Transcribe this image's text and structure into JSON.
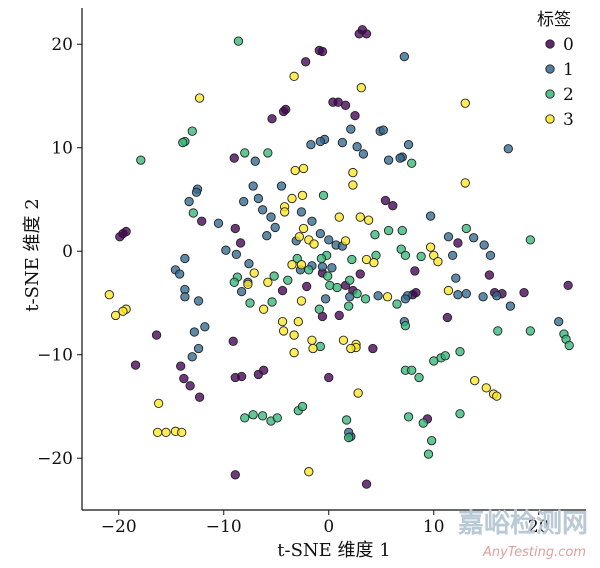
{
  "chart_data": {
    "type": "scatter",
    "title": "",
    "xlabel": "t-SNE 维度 1",
    "ylabel": "t-SNE 维度 2",
    "xlim": [
      -23.5,
      24.5
    ],
    "ylim": [
      -25,
      23.5
    ],
    "xticks": [
      -20,
      -10,
      0,
      10,
      20
    ],
    "yticks": [
      -20,
      -10,
      0,
      10,
      20
    ],
    "xtick_labels": [
      "−20",
      "−10",
      "0",
      "10",
      "20"
    ],
    "ytick_labels": [
      "−20",
      "−10",
      "0",
      "10",
      "20"
    ],
    "grid": false,
    "legend": {
      "title": "标签",
      "placement": "top-right"
    },
    "series": [
      {
        "name": "0",
        "color": "#440154",
        "points": [
          [
            2.9,
            21.0
          ],
          [
            3.2,
            21.4
          ],
          [
            3.6,
            21.0
          ],
          [
            -0.9,
            19.4
          ],
          [
            -0.6,
            19.3
          ],
          [
            -2.2,
            18.3
          ],
          [
            -4.1,
            13.7
          ],
          [
            -4.3,
            13.5
          ],
          [
            -5.4,
            12.8
          ],
          [
            0.4,
            14.4
          ],
          [
            0.9,
            14.4
          ],
          [
            1.6,
            14.1
          ],
          [
            -9.0,
            9.0
          ],
          [
            -12.1,
            2.9
          ],
          [
            -8.4,
            0.8
          ],
          [
            -8.9,
            2.2
          ],
          [
            -19.6,
            1.7
          ],
          [
            -19.3,
            1.9
          ],
          [
            -19.9,
            1.4
          ],
          [
            -16.4,
            -8.1
          ],
          [
            -18.4,
            -11.0
          ],
          [
            -14.1,
            -11.1
          ],
          [
            -13.8,
            -12.3
          ],
          [
            -13.2,
            -13.0
          ],
          [
            -12.3,
            -14.1
          ],
          [
            -9.1,
            -8.7
          ],
          [
            -8.9,
            -12.2
          ],
          [
            -8.3,
            -12.1
          ],
          [
            -6.7,
            -11.9
          ],
          [
            -6.2,
            -11.5
          ],
          [
            -8.9,
            -21.6
          ],
          [
            -4.4,
            -3.8
          ],
          [
            -2.1,
            -3.4
          ],
          [
            -0.6,
            -6.3
          ],
          [
            -0.6,
            -2.1
          ],
          [
            3.0,
            -2.2
          ],
          [
            4.2,
            -9.4
          ],
          [
            2.3,
            -3.8
          ],
          [
            1.6,
            -3.3
          ],
          [
            1.0,
            -6.2
          ],
          [
            0.0,
            -12.2
          ],
          [
            3.6,
            -22.5
          ],
          [
            5.4,
            4.9
          ],
          [
            6.1,
            4.4
          ],
          [
            8.0,
            -4.2
          ],
          [
            8.3,
            -4.0
          ],
          [
            8.2,
            -1.9
          ],
          [
            11.3,
            -6.4
          ],
          [
            12.3,
            0.8
          ],
          [
            15.3,
            -2.3
          ],
          [
            16.5,
            -4.1
          ],
          [
            15.8,
            -4.0
          ],
          [
            18.6,
            -4.0
          ],
          [
            22.8,
            -3.3
          ],
          [
            9.4,
            -16.2
          ],
          [
            2.5,
            13.1
          ]
        ]
      },
      {
        "name": "1",
        "color": "#31688e",
        "points": [
          [
            7.2,
            18.8
          ],
          [
            4.9,
            11.6
          ],
          [
            5.2,
            11.7
          ],
          [
            7.6,
            10.3
          ],
          [
            7.0,
            9.1
          ],
          [
            6.8,
            9.0
          ],
          [
            5.7,
            8.8
          ],
          [
            2.1,
            11.8
          ],
          [
            1.3,
            10.5
          ],
          [
            2.7,
            10.1
          ],
          [
            3.3,
            9.4
          ],
          [
            -0.4,
            10.8
          ],
          [
            -0.8,
            10.6
          ],
          [
            -1.7,
            10.3
          ],
          [
            17.1,
            9.9
          ],
          [
            -7.0,
            8.7
          ],
          [
            -13.3,
            4.8
          ],
          [
            -12.5,
            6.0
          ],
          [
            -12.6,
            5.7
          ],
          [
            -7.2,
            6.3
          ],
          [
            -4.5,
            6.3
          ],
          [
            -6.7,
            5.1
          ],
          [
            -8.1,
            4.8
          ],
          [
            -6.3,
            4.0
          ],
          [
            -5.5,
            3.3
          ],
          [
            -5.9,
            1.5
          ],
          [
            -5.1,
            2.3
          ],
          [
            -2.6,
            3.8
          ],
          [
            -3.1,
            1.0
          ],
          [
            -1.6,
            2.9
          ],
          [
            -0.8,
            1.7
          ],
          [
            0.0,
            1.1
          ],
          [
            0.7,
            0.6
          ],
          [
            1.3,
            0.5
          ],
          [
            0.3,
            -1.6
          ],
          [
            -0.6,
            -1.5
          ],
          [
            -1.6,
            -1.4
          ],
          [
            -2.7,
            -1.8
          ],
          [
            -9.8,
            0.1
          ],
          [
            -8.8,
            -0.3
          ],
          [
            -7.6,
            -1.2
          ],
          [
            -13.7,
            -0.7
          ],
          [
            -14.6,
            -1.8
          ],
          [
            -14.2,
            -2.2
          ],
          [
            -13.7,
            -3.7
          ],
          [
            -13.7,
            -4.4
          ],
          [
            -12.4,
            -4.8
          ],
          [
            -12.8,
            -7.8
          ],
          [
            -11.8,
            -7.3
          ],
          [
            -12.4,
            -9.4
          ],
          [
            -13.0,
            -10.2
          ],
          [
            -10.5,
            2.7
          ],
          [
            -0.3,
            -4.6
          ],
          [
            2.0,
            -4.4
          ],
          [
            4.7,
            -4.3
          ],
          [
            9.7,
            3.4
          ],
          [
            11.4,
            1.4
          ],
          [
            11.8,
            -0.4
          ],
          [
            13.8,
            1.3
          ],
          [
            14.8,
            0.6
          ],
          [
            15.4,
            -0.4
          ],
          [
            12.1,
            -2.6
          ],
          [
            12.3,
            -4.2
          ],
          [
            13.1,
            -4.1
          ],
          [
            16.0,
            -4.3
          ],
          [
            14.7,
            -4.4
          ],
          [
            17.3,
            -5.3
          ],
          [
            21.9,
            -6.8
          ],
          [
            7.5,
            -4.3
          ],
          [
            7.2,
            -6.8
          ],
          [
            2.1,
            -17.9
          ],
          [
            1.9,
            -17.5
          ],
          [
            7.3,
            -4.6
          ],
          [
            -7.7,
            -3.0
          ],
          [
            -8.3,
            -3.9
          ]
        ]
      },
      {
        "name": "2",
        "color": "#35b779",
        "points": [
          [
            -8.6,
            20.3
          ],
          [
            -13.0,
            11.6
          ],
          [
            -13.7,
            10.6
          ],
          [
            -13.9,
            10.5
          ],
          [
            -17.9,
            8.8
          ],
          [
            -8.0,
            9.5
          ],
          [
            -5.8,
            9.5
          ],
          [
            -0.5,
            5.4
          ],
          [
            7.0,
            2.0
          ],
          [
            5.7,
            2.0
          ],
          [
            4.4,
            1.6
          ],
          [
            7.9,
            8.5
          ],
          [
            4.5,
            -0.4
          ],
          [
            6.9,
            0.2
          ],
          [
            7.3,
            -0.4
          ],
          [
            8.8,
            -0.5
          ],
          [
            13.1,
            2.2
          ],
          [
            -12.9,
            3.7
          ],
          [
            -8.7,
            -2.5
          ],
          [
            -9.0,
            -3.0
          ],
          [
            -5.2,
            -2.4
          ],
          [
            -7.5,
            -5.0
          ],
          [
            -5.4,
            -4.9
          ],
          [
            -3.0,
            -0.7
          ],
          [
            -3.9,
            -2.8
          ],
          [
            -1.9,
            -1.8
          ],
          [
            -0.1,
            -2.4
          ],
          [
            0.1,
            -3.3
          ],
          [
            0.8,
            -3.5
          ],
          [
            2.2,
            -0.8
          ],
          [
            2.0,
            -2.8
          ],
          [
            -0.2,
            -0.4
          ],
          [
            -0.7,
            -0.7
          ],
          [
            -0.9,
            -5.6
          ],
          [
            1.9,
            -5.3
          ],
          [
            2.7,
            -4.1
          ],
          [
            3.5,
            -4.6
          ],
          [
            6.5,
            -5.1
          ],
          [
            7.3,
            -7.2
          ],
          [
            -0.8,
            -9.2
          ],
          [
            -8.0,
            -16.1
          ],
          [
            -7.2,
            -15.8
          ],
          [
            -6.3,
            -15.9
          ],
          [
            -5.5,
            -16.4
          ],
          [
            -4.9,
            -16.1
          ],
          [
            -2.9,
            -15.4
          ],
          [
            -2.5,
            -15.0
          ],
          [
            1.7,
            -16.3
          ],
          [
            1.9,
            -18.0
          ],
          [
            7.3,
            -11.5
          ],
          [
            7.9,
            -11.5
          ],
          [
            7.6,
            -16.0
          ],
          [
            9.0,
            -16.6
          ],
          [
            9.8,
            -18.3
          ],
          [
            9.5,
            -19.6
          ],
          [
            10.0,
            -10.6
          ],
          [
            10.7,
            -10.3
          ],
          [
            11.1,
            -10.1
          ],
          [
            12.5,
            -9.7
          ],
          [
            16.1,
            -7.7
          ],
          [
            19.2,
            1.1
          ],
          [
            19.2,
            -7.7
          ],
          [
            22.4,
            -8.0
          ],
          [
            22.6,
            -8.5
          ],
          [
            22.9,
            -9.1
          ],
          [
            12.5,
            -15.7
          ],
          [
            8.6,
            -12.2
          ]
        ]
      },
      {
        "name": "3",
        "color": "#fde725",
        "points": [
          [
            -3.3,
            16.9
          ],
          [
            3.1,
            15.8
          ],
          [
            13.0,
            14.3
          ],
          [
            -12.3,
            14.8
          ],
          [
            -2.4,
            8.0
          ],
          [
            -3.2,
            7.8
          ],
          [
            2.3,
            7.6
          ],
          [
            2.3,
            6.4
          ],
          [
            -2.5,
            5.4
          ],
          [
            -3.5,
            5.1
          ],
          [
            -4.2,
            4.3
          ],
          [
            -4.2,
            3.8
          ],
          [
            -2.4,
            2.2
          ],
          [
            -2.8,
            1.4
          ],
          [
            -1.9,
            1.1
          ],
          [
            -1.4,
            0.7
          ],
          [
            -3.5,
            -1.3
          ],
          [
            -2.6,
            -1.3
          ],
          [
            -5.8,
            -3.0
          ],
          [
            -7.1,
            -2.1
          ],
          [
            -7.7,
            -3.2
          ],
          [
            -2.6,
            -4.8
          ],
          [
            -2.9,
            -6.8
          ],
          [
            -6.2,
            -5.6
          ],
          [
            -4.4,
            -6.8
          ],
          [
            -4.3,
            -7.7
          ],
          [
            -3.3,
            -8.1
          ],
          [
            -1.6,
            -8.6
          ],
          [
            -1.5,
            -9.4
          ],
          [
            -3.3,
            -9.8
          ],
          [
            1.4,
            -8.6
          ],
          [
            2.6,
            -9.0
          ],
          [
            2.6,
            -9.3
          ],
          [
            2.1,
            -9.4
          ],
          [
            2.8,
            -13.7
          ],
          [
            -1.9,
            -21.3
          ],
          [
            1.0,
            3.3
          ],
          [
            3.0,
            3.3
          ],
          [
            3.8,
            3.0
          ],
          [
            1.6,
            1.0
          ],
          [
            3.6,
            -0.8
          ],
          [
            4.3,
            -1.1
          ],
          [
            5.6,
            -4.4
          ],
          [
            10.0,
            -0.4
          ],
          [
            10.4,
            -1.0
          ],
          [
            11.4,
            -3.8
          ],
          [
            13.0,
            6.6
          ],
          [
            9.7,
            0.4
          ],
          [
            13.9,
            -12.5
          ],
          [
            15.0,
            -13.2
          ],
          [
            15.7,
            -13.8
          ],
          [
            16.0,
            -14.0
          ],
          [
            -16.2,
            -14.7
          ],
          [
            -16.3,
            -17.5
          ],
          [
            -15.5,
            -17.5
          ],
          [
            -14.6,
            -17.4
          ],
          [
            -14.0,
            -17.5
          ],
          [
            -20.3,
            -6.2
          ],
          [
            -20.9,
            -4.2
          ],
          [
            -19.3,
            -5.6
          ],
          [
            -19.6,
            -5.8
          ]
        ]
      }
    ]
  },
  "legend_entries": [
    {
      "label": "0",
      "color": "#440154"
    },
    {
      "label": "1",
      "color": "#31688e"
    },
    {
      "label": "2",
      "color": "#35b779"
    },
    {
      "label": "3",
      "color": "#fde725"
    }
  ],
  "watermark": {
    "cn": "嘉峪检测网",
    "en": "AnyTesting.com"
  }
}
